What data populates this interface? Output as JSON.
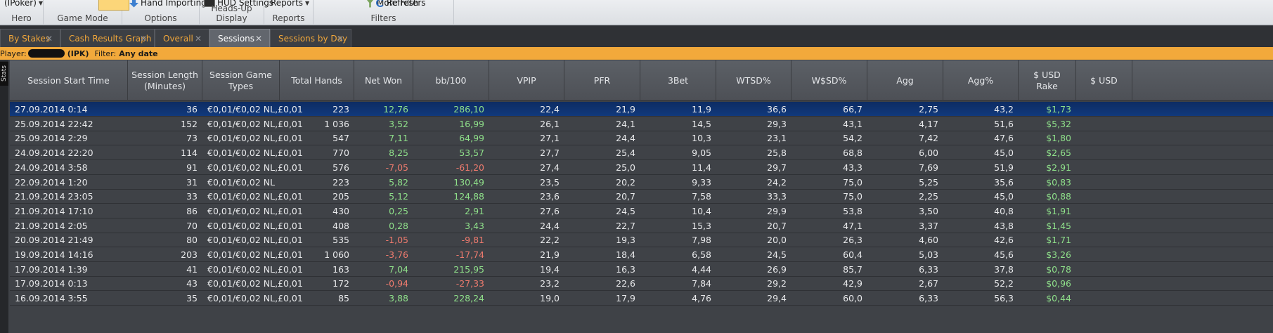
{
  "ribbon": {
    "hero": {
      "value": "(IPoker)",
      "caption": "Hero"
    },
    "game_mode": {
      "caption": "Game Mode"
    },
    "options": {
      "button": "Hand Importing",
      "caption": "Options"
    },
    "hud": {
      "button": "HUD Settings",
      "caption": "Heads-Up Display"
    },
    "reports": {
      "button": "Reports",
      "caption": "Reports"
    },
    "filters": {
      "more": "More Filters",
      "refresh": "Refresh",
      "caption": "Filters"
    }
  },
  "tabs": [
    {
      "label": "By Stakes",
      "active": false
    },
    {
      "label": "Cash Results Graph",
      "active": false
    },
    {
      "label": "Overall",
      "active": false
    },
    {
      "label": "Sessions",
      "active": true
    },
    {
      "label": "Sessions by Day",
      "active": false
    }
  ],
  "close_glyph": "✕",
  "filter_bar": {
    "player_label": "Player:",
    "player_suffix": "(IPK)",
    "filter_label": "Filter:",
    "filter_value": "Any date"
  },
  "side_label": "Stats",
  "columns": [
    "Session Start Time",
    "Session Length\n(Minutes)",
    "Session Game\nTypes",
    "Total Hands",
    "Net Won",
    "bb/100",
    "VPIP",
    "PFR",
    "3Bet",
    "WTSD%",
    "W$SD%",
    "Agg",
    "Agg%",
    "$ USD\nRake",
    "$ USD"
  ],
  "rows": [
    {
      "start": "27.09.2014 0:14",
      "len": "36",
      "types": "€0,01/€0,02 NL,£0,01",
      "hands": "223",
      "net": "12,76",
      "bb100": "286,10",
      "vpip": "22,4",
      "pfr": "21,9",
      "bet3": "11,9",
      "wtsd": "36,6",
      "wsd": "66,7",
      "agg": "2,75",
      "aggp": "43,2",
      "rake": "$1,73",
      "selected": true,
      "net_sign": "pos"
    },
    {
      "start": "25.09.2014 22:42",
      "len": "152",
      "types": "€0,01/€0,02 NL,£0,01",
      "hands": "1 036",
      "net": "3,52",
      "bb100": "16,99",
      "vpip": "26,1",
      "pfr": "24,1",
      "bet3": "14,5",
      "wtsd": "29,3",
      "wsd": "43,1",
      "agg": "4,17",
      "aggp": "51,6",
      "rake": "$5,32",
      "selected": false,
      "net_sign": "pos"
    },
    {
      "start": "25.09.2014 2:29",
      "len": "73",
      "types": "€0,01/€0,02 NL,£0,01",
      "hands": "547",
      "net": "7,11",
      "bb100": "64,99",
      "vpip": "27,1",
      "pfr": "24,4",
      "bet3": "10,3",
      "wtsd": "23,1",
      "wsd": "54,2",
      "agg": "7,42",
      "aggp": "47,6",
      "rake": "$1,80",
      "selected": false,
      "net_sign": "pos"
    },
    {
      "start": "24.09.2014 22:20",
      "len": "114",
      "types": "€0,01/€0,02 NL,£0,01",
      "hands": "770",
      "net": "8,25",
      "bb100": "53,57",
      "vpip": "27,7",
      "pfr": "25,4",
      "bet3": "9,05",
      "wtsd": "25,8",
      "wsd": "68,8",
      "agg": "6,00",
      "aggp": "45,0",
      "rake": "$2,65",
      "selected": false,
      "net_sign": "pos"
    },
    {
      "start": "24.09.2014 3:58",
      "len": "91",
      "types": "€0,01/€0,02 NL,£0,01",
      "hands": "576",
      "net": "-7,05",
      "bb100": "-61,20",
      "vpip": "27,4",
      "pfr": "25,0",
      "bet3": "11,4",
      "wtsd": "29,7",
      "wsd": "43,3",
      "agg": "7,69",
      "aggp": "51,9",
      "rake": "$2,91",
      "selected": false,
      "net_sign": "neg"
    },
    {
      "start": "22.09.2014 1:20",
      "len": "31",
      "types": "€0,01/€0,02 NL",
      "hands": "223",
      "net": "5,82",
      "bb100": "130,49",
      "vpip": "23,5",
      "pfr": "20,2",
      "bet3": "9,33",
      "wtsd": "24,2",
      "wsd": "75,0",
      "agg": "5,25",
      "aggp": "35,6",
      "rake": "$0,83",
      "selected": false,
      "net_sign": "pos"
    },
    {
      "start": "21.09.2014 23:05",
      "len": "33",
      "types": "€0,01/€0,02 NL,£0,01",
      "hands": "205",
      "net": "5,12",
      "bb100": "124,88",
      "vpip": "23,6",
      "pfr": "20,7",
      "bet3": "7,58",
      "wtsd": "33,3",
      "wsd": "75,0",
      "agg": "2,25",
      "aggp": "45,0",
      "rake": "$0,88",
      "selected": false,
      "net_sign": "pos"
    },
    {
      "start": "21.09.2014 17:10",
      "len": "86",
      "types": "€0,01/€0,02 NL,£0,01",
      "hands": "430",
      "net": "0,25",
      "bb100": "2,91",
      "vpip": "27,6",
      "pfr": "24,5",
      "bet3": "10,4",
      "wtsd": "29,9",
      "wsd": "53,8",
      "agg": "3,50",
      "aggp": "40,8",
      "rake": "$1,91",
      "selected": false,
      "net_sign": "pos"
    },
    {
      "start": "21.09.2014 2:05",
      "len": "70",
      "types": "€0,01/€0,02 NL,£0,01",
      "hands": "408",
      "net": "0,28",
      "bb100": "3,43",
      "vpip": "24,4",
      "pfr": "22,7",
      "bet3": "15,3",
      "wtsd": "20,7",
      "wsd": "47,1",
      "agg": "3,37",
      "aggp": "43,8",
      "rake": "$1,45",
      "selected": false,
      "net_sign": "pos"
    },
    {
      "start": "20.09.2014 21:49",
      "len": "80",
      "types": "€0,01/€0,02 NL,£0,01",
      "hands": "535",
      "net": "-1,05",
      "bb100": "-9,81",
      "vpip": "22,2",
      "pfr": "19,3",
      "bet3": "7,98",
      "wtsd": "20,0",
      "wsd": "26,3",
      "agg": "4,60",
      "aggp": "42,6",
      "rake": "$1,71",
      "selected": false,
      "net_sign": "neg"
    },
    {
      "start": "19.09.2014 14:16",
      "len": "203",
      "types": "€0,01/€0,02 NL,£0,01",
      "hands": "1 060",
      "net": "-3,76",
      "bb100": "-17,74",
      "vpip": "21,9",
      "pfr": "18,4",
      "bet3": "6,58",
      "wtsd": "24,5",
      "wsd": "60,4",
      "agg": "5,03",
      "aggp": "45,6",
      "rake": "$3,26",
      "selected": false,
      "net_sign": "neg"
    },
    {
      "start": "17.09.2014 1:39",
      "len": "41",
      "types": "€0,01/€0,02 NL,£0,01",
      "hands": "163",
      "net": "7,04",
      "bb100": "215,95",
      "vpip": "19,4",
      "pfr": "16,3",
      "bet3": "4,44",
      "wtsd": "26,9",
      "wsd": "85,7",
      "agg": "6,33",
      "aggp": "37,8",
      "rake": "$0,78",
      "selected": false,
      "net_sign": "pos"
    },
    {
      "start": "17.09.2014 0:13",
      "len": "43",
      "types": "€0,01/€0,02 NL,£0,01",
      "hands": "172",
      "net": "-0,94",
      "bb100": "-27,33",
      "vpip": "23,2",
      "pfr": "22,6",
      "bet3": "7,84",
      "wtsd": "29,2",
      "wsd": "42,9",
      "agg": "2,67",
      "aggp": "52,2",
      "rake": "$0,96",
      "selected": false,
      "net_sign": "neg"
    },
    {
      "start": "16.09.2014 3:55",
      "len": "35",
      "types": "€0,01/€0,02 NL,£0,01",
      "hands": "85",
      "net": "3,88",
      "bb100": "228,24",
      "vpip": "19,0",
      "pfr": "17,9",
      "bet3": "4,76",
      "wtsd": "29,4",
      "wsd": "60,0",
      "agg": "6,33",
      "aggp": "56,3",
      "rake": "$0,44",
      "selected": false,
      "net_sign": "pos"
    }
  ]
}
